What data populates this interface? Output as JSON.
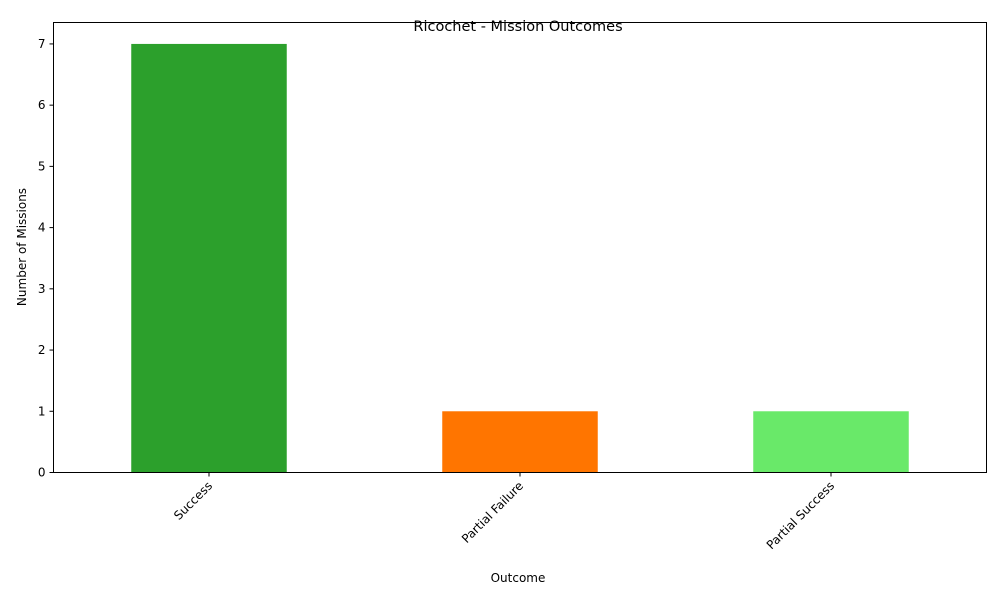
{
  "chart_data": {
    "type": "bar",
    "title": "Ricochet - Mission Outcomes",
    "xlabel": "Outcome",
    "ylabel": "Number of Missions",
    "categories": [
      "Success",
      "Partial Failure",
      "Partial Success"
    ],
    "values": [
      7,
      1,
      1
    ],
    "colors": [
      "#2ca02c",
      "#ff7500",
      "#69e969"
    ],
    "ylim": [
      0,
      7.35
    ],
    "yticks": [
      0,
      1,
      2,
      3,
      4,
      5,
      6,
      7
    ],
    "grid": false,
    "legend": "none"
  }
}
